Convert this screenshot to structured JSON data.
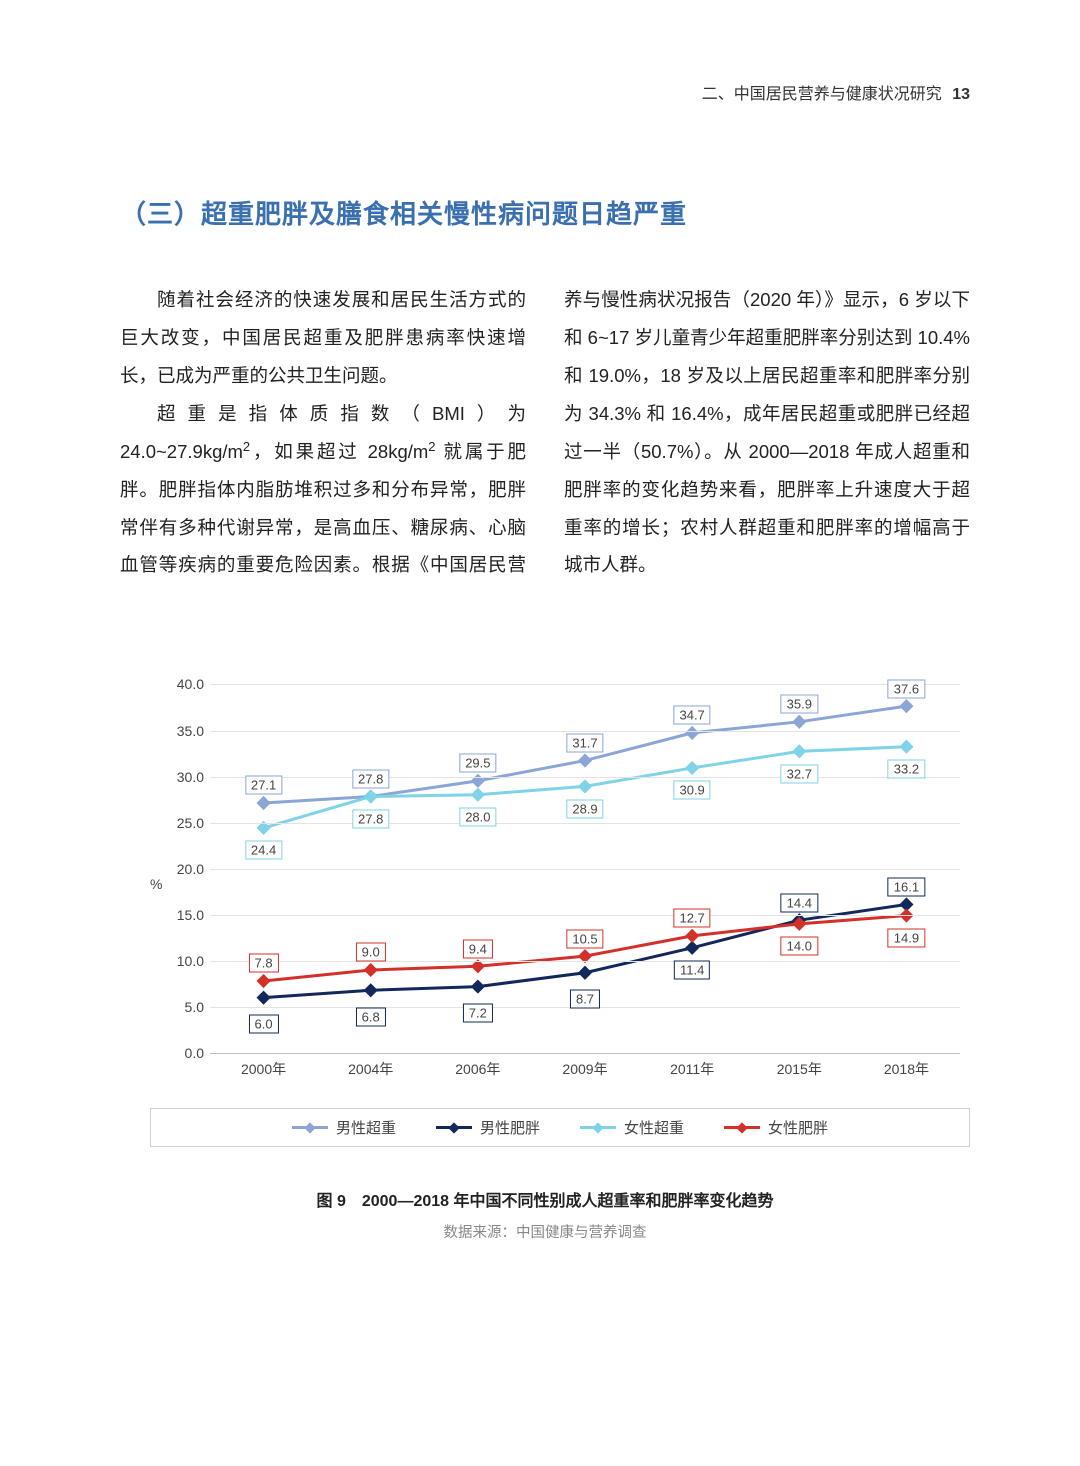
{
  "header": {
    "section": "二、中国居民营养与健康状况研究",
    "page_num": "13"
  },
  "title": "（三）超重肥胖及膳食相关慢性病问题日趋严重",
  "body_html": "<p class='para'>随着社会经济的快速发展和居民生活方式的巨大改变，中国居民超重及肥胖患病率快速增长，已成为严重的公共卫生问题。</p><p class='para'>超重是指体质指数（BMI）为 24.0~27.9kg/m<sup>2</sup>，如果超过 28kg/m<sup>2</sup> 就属于肥胖。肥胖指体内脂肪堆积过多和分布异常，肥胖常伴有多种代谢异常，是高血压、糖尿病、心脑血管等疾病的重要危险因素。根据《中国居民营养与慢性病状况报告（2020 年）》显示，6 岁以下和 6~17 岁儿童青少年超重肥胖率分别达到 10.4% 和 19.0%，18 岁及以上居民超重率和肥胖率分别为 34.3% 和 16.4%，成年居民超重或肥胖已经超过一半（50.7%）。从 2000—2018 年成人超重和肥胖率的变化趋势来看，肥胖率上升速度大于超重率的增长；农村人群超重和肥胖率的增幅高于城市人群。</p>",
  "chart": {
    "type": "line",
    "y_label": "%",
    "y_min": 0,
    "y_max": 40,
    "y_step": 5,
    "y_ticks": [
      "0.0",
      "5.0",
      "10.0",
      "15.0",
      "20.0",
      "25.0",
      "30.0",
      "35.0",
      "40.0"
    ],
    "categories": [
      "2000年",
      "2004年",
      "2006年",
      "2009年",
      "2011年",
      "2015年",
      "2018年"
    ],
    "series": [
      {
        "name": "男性超重",
        "color": "#8aa5d6",
        "label_color": "#8aa5d6",
        "values": [
          27.1,
          27.8,
          29.5,
          31.7,
          34.7,
          35.9,
          37.6
        ],
        "label_dy": [
          -18,
          -18,
          -18,
          -18,
          -18,
          -18,
          -18
        ]
      },
      {
        "name": "女性超重",
        "color": "#7fd3e6",
        "label_color": "#7fd3e6",
        "values": [
          24.4,
          27.8,
          28.0,
          28.9,
          30.9,
          32.7,
          33.2
        ],
        "label_dy": [
          22,
          22,
          22,
          22,
          22,
          22,
          22
        ]
      },
      {
        "name": "男性肥胖",
        "color": "#12275a",
        "label_color": "#12275a",
        "values": [
          6.0,
          6.8,
          7.2,
          8.7,
          11.4,
          14.4,
          16.1
        ],
        "label_dy": [
          26,
          26,
          26,
          26,
          22,
          -18,
          -18
        ]
      },
      {
        "name": "女性肥胖",
        "color": "#d4302a",
        "label_color": "#d4302a",
        "values": [
          7.8,
          9.0,
          9.4,
          10.5,
          12.7,
          14.0,
          14.9
        ],
        "label_dy": [
          -18,
          -18,
          -18,
          -18,
          -18,
          22,
          22
        ]
      }
    ],
    "legend_order": [
      "男性超重",
      "男性肥胖",
      "女性超重",
      "女性肥胖"
    ],
    "caption": "图 9　2000—2018 年中国不同性别成人超重率和肥胖率变化趋势",
    "source": "数据来源：中国健康与营养调查",
    "grid_color": "#e3e3e3",
    "axis_color": "#bfbfbf",
    "label_fontsize": 13,
    "line_width": 3,
    "marker_size": 5
  }
}
